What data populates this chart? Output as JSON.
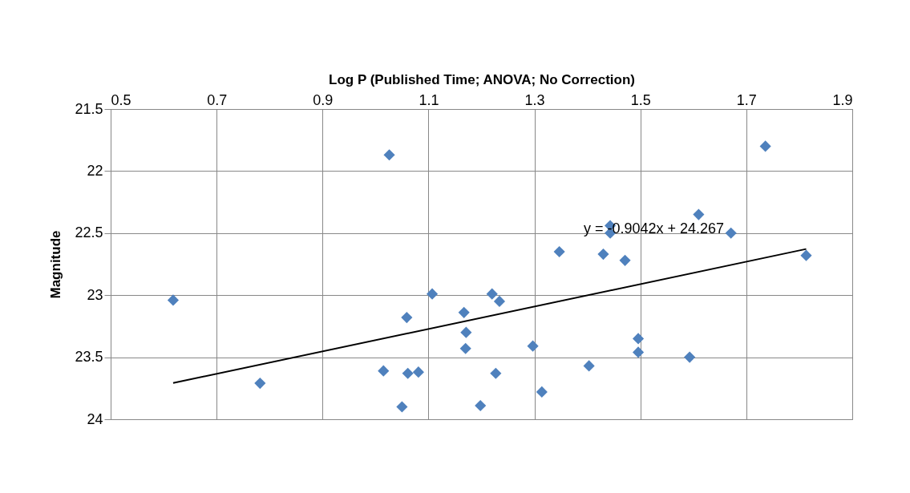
{
  "chart_data": {
    "type": "scatter",
    "xlabel": "Log P (Published Time; ANOVA; No Correction)",
    "ylabel": "Magnitude",
    "xlim": [
      0.5,
      1.9
    ],
    "xticks": [
      0.5,
      0.7,
      0.9,
      1.1,
      1.3,
      1.5,
      1.7,
      1.9
    ],
    "ylim": [
      24,
      21.5
    ],
    "yticks": [
      21.5,
      22,
      22.5,
      23,
      23.5,
      24
    ],
    "grid": true,
    "series": [
      {
        "marker": "diamond",
        "color": "#4f81bd",
        "x": [
          1.026,
          0.618,
          1.107,
          1.059,
          1.167,
          1.171,
          1.17,
          1.015,
          1.061,
          1.081,
          0.782,
          1.05,
          1.736,
          1.61,
          1.443,
          1.443,
          1.671,
          1.347,
          1.43,
          1.471,
          1.813,
          1.22,
          1.234,
          1.297,
          1.496,
          1.496,
          1.593,
          1.403,
          1.227,
          1.314,
          1.198
        ],
        "values": [
          21.87,
          23.04,
          22.99,
          23.18,
          23.14,
          23.3,
          23.43,
          23.61,
          23.63,
          23.62,
          23.71,
          23.9,
          21.8,
          22.35,
          22.44,
          22.5,
          22.5,
          22.65,
          22.67,
          22.72,
          22.68,
          22.99,
          23.05,
          23.41,
          23.35,
          23.46,
          23.5,
          23.57,
          23.63,
          23.78,
          23.89
        ]
      },
      {
        "type": "line",
        "color": "#000000",
        "x": [
          0.618,
          1.813
        ],
        "values": [
          23.708,
          22.628
        ]
      }
    ],
    "annotations": [
      "y = -0.9042x + 24.267"
    ]
  }
}
